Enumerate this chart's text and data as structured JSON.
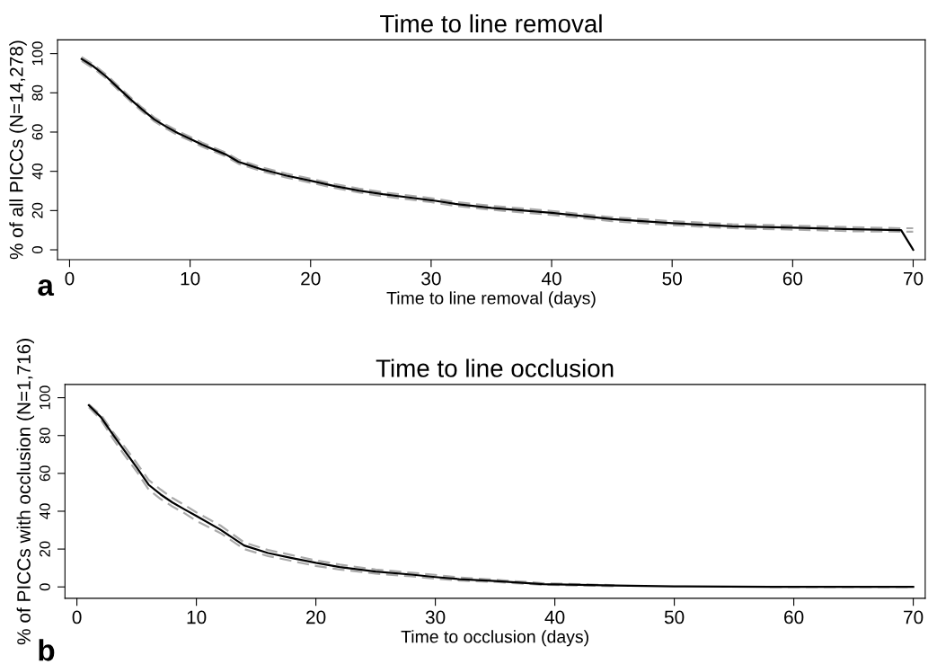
{
  "chart_data": [
    {
      "type": "line",
      "title": "Time to line removal",
      "xlabel": "Time to line removal (days)",
      "ylabel": "% of all PICCs (N=14,278)",
      "annotations": [
        "a"
      ],
      "xlim": [
        -1,
        71
      ],
      "ylim": [
        -5,
        107
      ],
      "xticks": [
        0,
        10,
        20,
        30,
        40,
        50,
        60,
        70
      ],
      "yticks": [
        0,
        20,
        40,
        60,
        80,
        100
      ],
      "grid": false,
      "series": [
        {
          "color": "#aaaaaa",
          "line_style": "dashed",
          "x": [
            1,
            2,
            3,
            4,
            5,
            6,
            7,
            8,
            9,
            10,
            11,
            12,
            13,
            14,
            15,
            16,
            17,
            18,
            20,
            22,
            24,
            26,
            28,
            30,
            32,
            35,
            40,
            45,
            50,
            55,
            60,
            65,
            69,
            70
          ],
          "values": [
            96.2,
            92.4,
            87.5,
            81.7,
            76,
            70.6,
            65.6,
            61.8,
            58.4,
            55.6,
            52.6,
            50,
            47.5,
            43.9,
            41.9,
            39.9,
            38.4,
            36.8,
            34.2,
            31.5,
            29.2,
            27.3,
            25.8,
            24.3,
            22.4,
            20.4,
            17.8,
            14.6,
            12.6,
            11,
            10.3,
            9.5,
            9.2,
            9.2
          ]
        },
        {
          "color": "#aaaaaa",
          "line_style": "dashed",
          "x": [
            1,
            2,
            3,
            4,
            5,
            6,
            7,
            8,
            9,
            10,
            11,
            12,
            13,
            14,
            15,
            16,
            17,
            18,
            20,
            22,
            24,
            26,
            28,
            30,
            32,
            35,
            40,
            45,
            50,
            55,
            60,
            65,
            69,
            70
          ],
          "values": [
            98.2,
            94.4,
            89.5,
            83.7,
            78,
            72.6,
            67.6,
            63.8,
            60.4,
            57.6,
            54.6,
            52,
            49.5,
            45.9,
            43.9,
            41.9,
            40.4,
            38.8,
            36.2,
            33.5,
            31.2,
            29.3,
            27.8,
            26.3,
            24.4,
            22.4,
            19.8,
            16.6,
            14.6,
            13,
            12.3,
            11.5,
            11,
            11
          ]
        },
        {
          "color": "#000000",
          "line_style": "solid",
          "x": [
            1,
            2,
            3,
            4,
            5,
            6,
            7,
            8,
            9,
            10,
            11,
            12,
            13,
            14,
            15,
            16,
            17,
            18,
            20,
            22,
            24,
            26,
            28,
            30,
            32,
            35,
            40,
            45,
            50,
            55,
            60,
            65,
            69,
            70
          ],
          "values": [
            97.2,
            93.4,
            88.5,
            82.7,
            77,
            71.6,
            66.6,
            62.8,
            59.4,
            56.6,
            53.6,
            51,
            48.5,
            44.9,
            42.9,
            40.9,
            39.4,
            37.8,
            35.2,
            32.5,
            30.2,
            28.3,
            26.8,
            25.3,
            23.4,
            21.4,
            18.8,
            15.6,
            13.6,
            12,
            11.3,
            10.5,
            10,
            0
          ]
        }
      ]
    },
    {
      "type": "line",
      "title": "Time to line occlusion",
      "xlabel": "Time to occlusion (days)",
      "ylabel": "% of PICCs with occlusion (N=1,716)",
      "annotations": [
        "b"
      ],
      "xlim": [
        -1,
        71
      ],
      "ylim": [
        -6,
        107
      ],
      "xticks": [
        0,
        10,
        20,
        30,
        40,
        50,
        60,
        70
      ],
      "yticks": [
        0,
        20,
        40,
        60,
        80,
        100
      ],
      "grid": false,
      "series": [
        {
          "color": "#aaaaaa",
          "line_style": "dashed",
          "x": [
            1,
            2,
            3,
            4,
            5,
            6,
            7,
            8,
            9,
            10,
            12,
            14,
            16,
            18,
            20,
            22,
            25,
            28,
            30,
            32,
            35,
            39,
            45,
            50,
            58,
            70
          ],
          "values": [
            95,
            88.5,
            78.5,
            69.5,
            61,
            51.5,
            46.5,
            42.5,
            39,
            34.9,
            28.5,
            20,
            16.3,
            13.7,
            11.1,
            9.2,
            7,
            5.6,
            4.4,
            3.4,
            2.6,
            1.1,
            0.4,
            null,
            0,
            0
          ]
        },
        {
          "color": "#aaaaaa",
          "line_style": "dashed",
          "x": [
            1,
            2,
            3,
            4,
            5,
            6,
            7,
            8,
            9,
            10,
            12,
            14,
            16,
            18,
            20,
            22,
            25,
            28,
            30,
            32,
            35,
            39,
            45,
            50,
            58,
            70
          ],
          "values": [
            96.5,
            91,
            82,
            74,
            65.5,
            56.5,
            51.5,
            47,
            43.3,
            39.4,
            32.5,
            23.5,
            19.5,
            16.8,
            14,
            11.8,
            9.2,
            7.5,
            6.3,
            5,
            3.8,
            2,
            0.9,
            null,
            0,
            0
          ]
        },
        {
          "color": "#000000",
          "line_style": "solid",
          "x": [
            1,
            2,
            3,
            4,
            5,
            6,
            7,
            8,
            9,
            10,
            12,
            14,
            16,
            18,
            20,
            22,
            25,
            28,
            30,
            32,
            35,
            39,
            45,
            50,
            58,
            70
          ],
          "values": [
            96,
            89.8,
            80.6,
            71.9,
            63.2,
            54,
            48.9,
            44.6,
            41,
            37.5,
            30.3,
            21.9,
            17.9,
            15.2,
            12.7,
            10.5,
            8.1,
            6.5,
            5.2,
            4.1,
            3.1,
            1.5,
            0.7,
            0.3,
            0,
            0
          ]
        }
      ]
    }
  ]
}
